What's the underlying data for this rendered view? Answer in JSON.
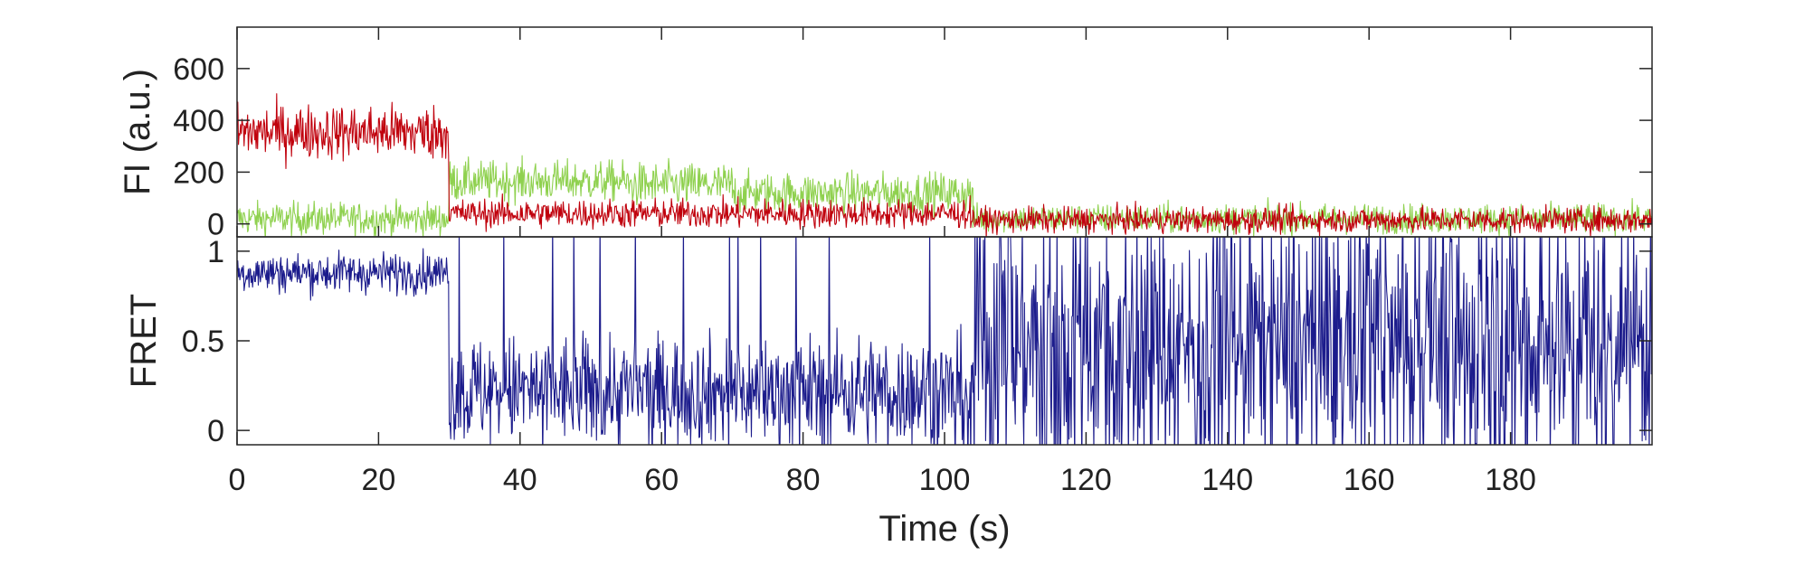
{
  "chart_data": [
    {
      "type": "line",
      "panel": "top",
      "title": "",
      "xlabel": "",
      "ylabel": "FI (a.u.)",
      "xlim": [
        0,
        200
      ],
      "ylim": [
        -50,
        760
      ],
      "yticks": [
        0,
        200,
        400,
        600
      ],
      "ytick_labels": [
        "0",
        "200",
        "400",
        "600"
      ],
      "grid": false,
      "legend": "none",
      "series": [
        {
          "color": "#8fd14f",
          "sample_step_s": 0.1,
          "segments": [
            {
              "t_start": 0,
              "t_end": 30,
              "mean": 20,
              "noise": 45
            },
            {
              "t_start": 30,
              "t_end": 55,
              "mean": 165,
              "noise": 55
            },
            {
              "t_start": 55,
              "t_end": 70,
              "mean": 150,
              "noise": 60
            },
            {
              "t_start": 70,
              "t_end": 104,
              "mean": 120,
              "noise": 55
            },
            {
              "t_start": 104,
              "t_end": 200,
              "mean": 20,
              "noise": 40
            }
          ]
        },
        {
          "color": "#c0000c",
          "sample_step_s": 0.1,
          "segments": [
            {
              "t_start": 0,
              "t_end": 30,
              "mean": 355,
              "noise": 75
            },
            {
              "t_start": 30,
              "t_end": 104,
              "mean": 40,
              "noise": 40
            },
            {
              "t_start": 104,
              "t_end": 200,
              "mean": 15,
              "noise": 35
            }
          ]
        }
      ]
    },
    {
      "type": "line",
      "panel": "bottom",
      "title": "",
      "xlabel": "Time (s)",
      "ylabel": "FRET",
      "xlim": [
        0,
        200
      ],
      "ylim": [
        -0.08,
        1.08
      ],
      "yticks": [
        0,
        0.5,
        1
      ],
      "ytick_labels": [
        "0",
        "0.5",
        "1"
      ],
      "xticks": [
        0,
        20,
        40,
        60,
        80,
        100,
        120,
        140,
        160,
        180
      ],
      "xtick_labels": [
        "0",
        "20",
        "40",
        "60",
        "80",
        "100",
        "120",
        "140",
        "160",
        "180"
      ],
      "grid": false,
      "legend": "none",
      "series": [
        {
          "color": "#1c1c8c",
          "sample_step_s": 0.1,
          "segments": [
            {
              "t_start": 0,
              "t_end": 30,
              "mean": 0.88,
              "noise": 0.08
            },
            {
              "t_start": 30,
              "t_end": 104,
              "mean": 0.22,
              "noise": 0.22,
              "spike_prob": 0.04
            },
            {
              "t_start": 104,
              "t_end": 200,
              "mean": 0.5,
              "noise": 0.5,
              "spike_prob": 0.12
            }
          ]
        }
      ]
    }
  ],
  "colors": {
    "axis": "#262626",
    "text": "#222222",
    "donor": "#8fd14f",
    "acceptor": "#c0000c",
    "fret": "#1c1c8c"
  }
}
